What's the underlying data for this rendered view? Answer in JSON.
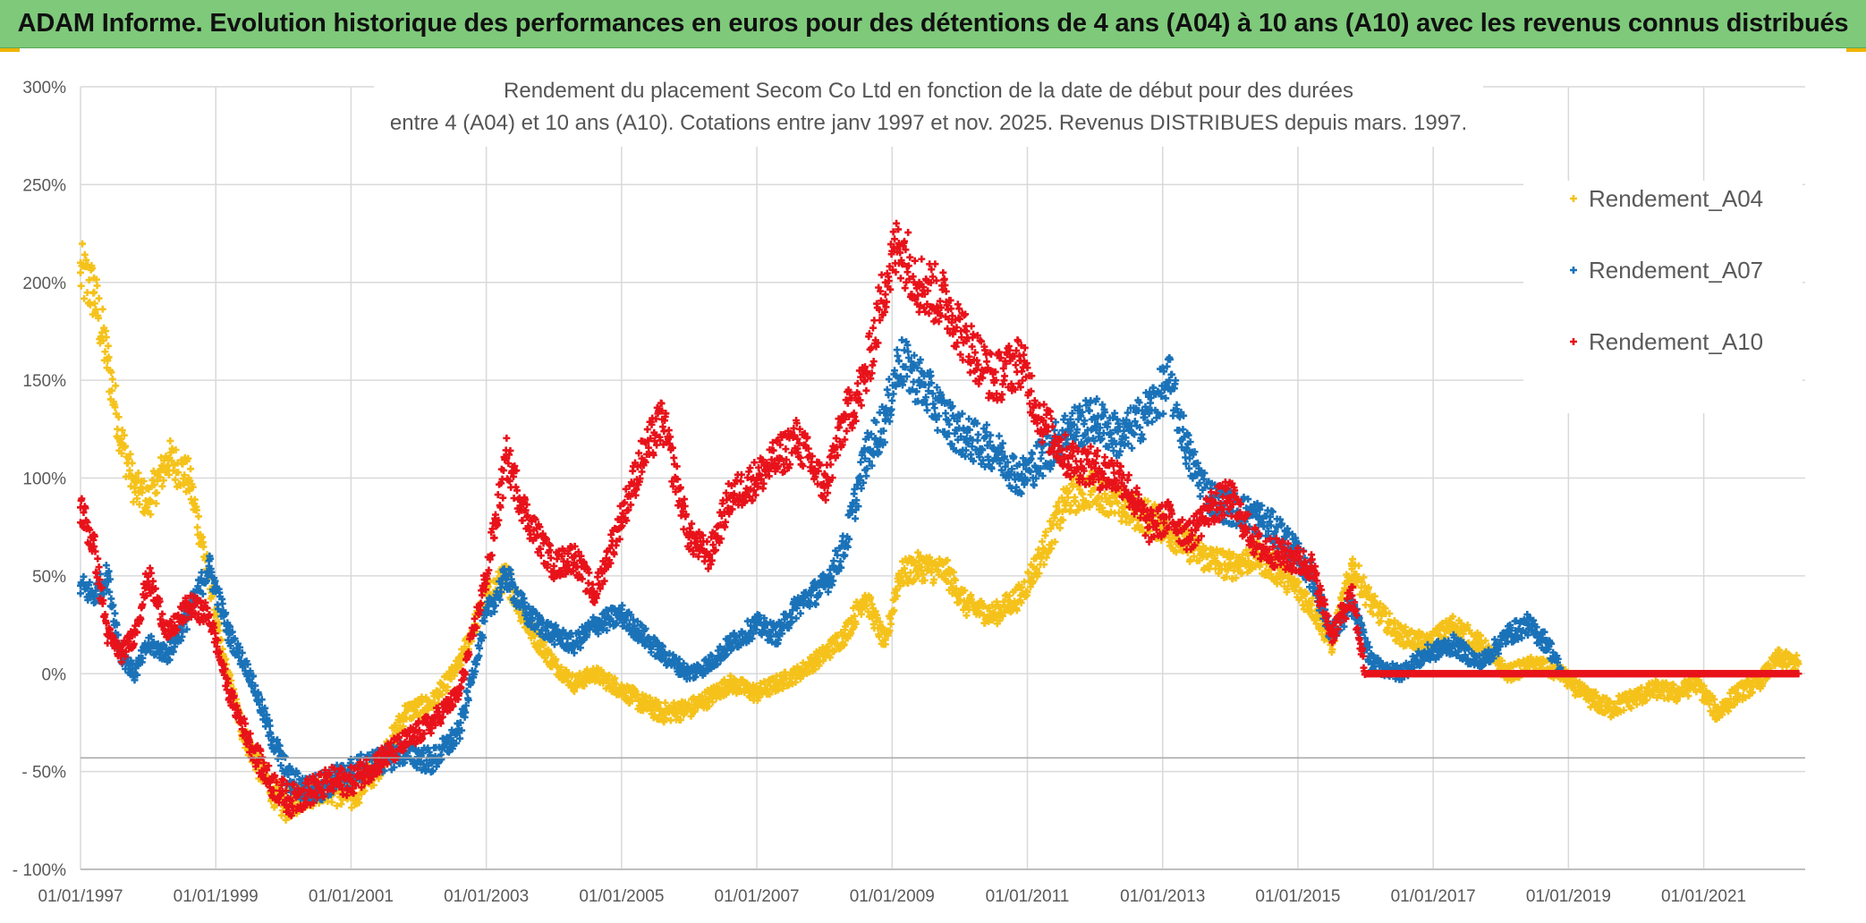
{
  "banner": {
    "text": "ADAM Informe. Evolution historique des performances en euros pour des détentions de 4 ans (A04) à 10 ans (A10) avec les revenus connus distribués"
  },
  "chart_data": {
    "type": "scatter",
    "title_line1": "Rendement du placement Secom Co Ltd en fonction de la date de début pour des durées",
    "title_line2": "entre 4 (A04) et 10 ans (A10). Cotations entre janv 1997 et nov. 2025. Revenus DISTRIBUES depuis mars. 1997.",
    "xlabel": "",
    "ylabel": "",
    "x_range": [
      1997.0,
      2022.5
    ],
    "ylim": [
      -100,
      300
    ],
    "y_ticks": [
      -100,
      -50,
      0,
      50,
      100,
      150,
      200,
      250,
      300
    ],
    "y_tick_labels": [
      "- 100%",
      "- 50%",
      "0%",
      "50%",
      "100%",
      "150%",
      "200%",
      "250%",
      "300%"
    ],
    "x_ticks": [
      1997,
      1999,
      2001,
      2003,
      2005,
      2007,
      2009,
      2011,
      2013,
      2015,
      2017,
      2019,
      2021
    ],
    "x_tick_labels": [
      "01/01/1997",
      "01/01/1999",
      "01/01/2001",
      "01/01/2003",
      "01/01/2005",
      "01/01/2007",
      "01/01/2009",
      "01/01/2011",
      "01/01/2013",
      "01/01/2015",
      "01/01/2017",
      "01/01/2019",
      "01/01/2021"
    ],
    "grid": true,
    "legend_position": "top-right",
    "series": [
      {
        "name": "Rendement_A04",
        "color": "#f5c21b",
        "x": [
          1997.0,
          1997.2,
          1997.4,
          1997.6,
          1997.8,
          1998.0,
          1998.3,
          1998.6,
          1998.9,
          1999.1,
          1999.4,
          1999.7,
          2000.0,
          2000.3,
          2000.6,
          2001.0,
          2001.4,
          2001.8,
          2002.2,
          2002.6,
          2003.0,
          2003.3,
          2003.6,
          2004.0,
          2004.3,
          2004.6,
          2005.0,
          2005.3,
          2005.6,
          2006.0,
          2006.3,
          2006.6,
          2007.0,
          2007.3,
          2007.6,
          2008.0,
          2008.3,
          2008.6,
          2008.9,
          2009.1,
          2009.4,
          2009.8,
          2010.1,
          2010.5,
          2010.9,
          2011.2,
          2011.6,
          2012.0,
          2012.4,
          2012.8,
          2013.2,
          2013.6,
          2014.0,
          2014.4,
          2014.8,
          2015.2,
          2015.5,
          2015.8,
          2016.1,
          2016.5,
          2016.9,
          2017.3,
          2017.7,
          2018.1,
          2018.5,
          2018.9,
          2019.2,
          2019.6,
          2020.0,
          2020.3,
          2020.6,
          2020.9,
          2021.2,
          2021.5,
          2021.8,
          2022.1,
          2022.4
        ],
        "values": [
          205,
          195,
          160,
          120,
          95,
          88,
          110,
          100,
          50,
          10,
          -30,
          -52,
          -68,
          -62,
          -58,
          -63,
          -48,
          -20,
          -15,
          5,
          40,
          50,
          25,
          5,
          -5,
          0,
          -8,
          -15,
          -20,
          -18,
          -12,
          -5,
          -10,
          -5,
          0,
          10,
          20,
          40,
          15,
          50,
          55,
          52,
          35,
          30,
          40,
          60,
          90,
          95,
          85,
          80,
          70,
          60,
          55,
          60,
          50,
          35,
          15,
          55,
          35,
          20,
          15,
          25,
          15,
          0,
          5,
          0,
          -10,
          -18,
          -12,
          -8,
          -10,
          -5,
          -20,
          -10,
          -5,
          8,
          5
        ]
      },
      {
        "name": "Rendement_A07",
        "color": "#1a72b8",
        "x": [
          1997.0,
          1997.2,
          1997.4,
          1997.6,
          1997.8,
          1998.0,
          1998.3,
          1998.6,
          1998.9,
          1999.2,
          1999.5,
          1999.8,
          2000.1,
          2000.4,
          2000.7,
          2001.0,
          2001.4,
          2001.8,
          2002.2,
          2002.6,
          2003.0,
          2003.3,
          2003.6,
          2004.0,
          2004.3,
          2004.6,
          2005.0,
          2005.3,
          2005.6,
          2006.0,
          2006.3,
          2006.6,
          2007.0,
          2007.3,
          2007.6,
          2008.0,
          2008.3,
          2008.6,
          2008.9,
          2009.1,
          2009.4,
          2009.8,
          2010.1,
          2010.5,
          2010.9,
          2011.2,
          2011.6,
          2012.0,
          2012.4,
          2012.8,
          2013.1,
          2013.4,
          2013.7,
          2014.0,
          2014.4,
          2014.8,
          2015.2,
          2015.5,
          2015.8,
          2016.1,
          2016.5,
          2016.9,
          2017.3,
          2017.7,
          2018.1,
          2018.4,
          2018.7,
          2018.9
        ],
        "values": [
          45,
          40,
          50,
          10,
          0,
          15,
          10,
          30,
          55,
          20,
          0,
          -30,
          -55,
          -60,
          -55,
          -50,
          -45,
          -40,
          -45,
          -30,
          30,
          50,
          30,
          20,
          15,
          25,
          30,
          20,
          10,
          0,
          5,
          15,
          25,
          20,
          35,
          45,
          65,
          110,
          130,
          160,
          150,
          130,
          120,
          115,
          100,
          110,
          125,
          130,
          120,
          135,
          150,
          110,
          90,
          85,
          80,
          70,
          50,
          20,
          35,
          5,
          0,
          10,
          15,
          5,
          20,
          25,
          15,
          0
        ]
      },
      {
        "name": "Rendement_A10",
        "color": "#e8121a",
        "x": [
          1997.0,
          1997.2,
          1997.4,
          1997.6,
          1997.8,
          1998.0,
          1998.3,
          1998.6,
          1998.9,
          1999.2,
          1999.5,
          1999.8,
          2000.1,
          2000.4,
          2000.7,
          2001.0,
          2001.4,
          2001.8,
          2002.2,
          2002.6,
          2003.0,
          2003.3,
          2003.6,
          2004.0,
          2004.3,
          2004.6,
          2005.0,
          2005.3,
          2005.6,
          2006.0,
          2006.3,
          2006.6,
          2007.0,
          2007.3,
          2007.6,
          2008.0,
          2008.3,
          2008.6,
          2008.9,
          2009.1,
          2009.4,
          2009.8,
          2010.1,
          2010.5,
          2010.9,
          2011.2,
          2011.6,
          2012.0,
          2012.4,
          2012.8,
          2013.1,
          2013.4,
          2013.7,
          2014.0,
          2014.4,
          2014.8,
          2015.2,
          2015.5,
          2015.8,
          2016.0,
          2016.5,
          2017.0,
          2017.5,
          2018.0,
          2018.5,
          2019.0,
          2019.5,
          2020.0,
          2020.5,
          2021.0,
          2021.5,
          2022.0,
          2022.4
        ],
        "values": [
          85,
          65,
          20,
          10,
          20,
          50,
          20,
          35,
          30,
          -10,
          -35,
          -55,
          -65,
          -60,
          -55,
          -55,
          -45,
          -35,
          -25,
          -10,
          50,
          110,
          80,
          55,
          60,
          40,
          80,
          110,
          130,
          70,
          60,
          90,
          100,
          110,
          120,
          95,
          130,
          150,
          200,
          220,
          200,
          190,
          170,
          150,
          160,
          130,
          110,
          105,
          100,
          75,
          80,
          70,
          85,
          90,
          65,
          60,
          55,
          20,
          40,
          0,
          0,
          0,
          0,
          0,
          0,
          0,
          0,
          0,
          0,
          0,
          0,
          0,
          0
        ]
      }
    ]
  }
}
